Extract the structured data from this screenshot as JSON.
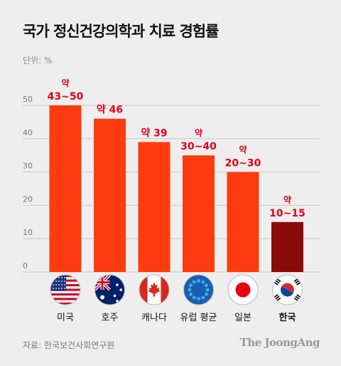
{
  "title": "국가 정신건강의학과 치료 경험률",
  "unit_label": "단위: %",
  "source": "자료: 한국보건사회연구원",
  "brand": "The JoongAng",
  "colors": {
    "bar": "#ff3b0f",
    "highlight": "#8b0a0a",
    "label": "#e0001a",
    "grid": "#c8c8c8"
  },
  "chart_data": {
    "type": "bar",
    "title": "국가 정신건강의학과 치료 경험률",
    "ylabel": "단위: %",
    "ylim": [
      0,
      50
    ],
    "yticks": [
      0,
      10,
      20,
      30,
      40,
      50
    ],
    "grid": true,
    "categories": [
      "미국",
      "호주",
      "캐나다",
      "유럽 평균",
      "일본",
      "한국"
    ],
    "values": [
      50,
      46,
      39,
      35,
      30,
      15
    ],
    "data_labels": [
      [
        "약",
        "43~50"
      ],
      [
        "약 46"
      ],
      [
        "약 39"
      ],
      [
        "약",
        "30~40"
      ],
      [
        "약",
        "20~30"
      ],
      [
        "약",
        "10~15"
      ]
    ],
    "flags": [
      "usa-flag-icon",
      "australia-flag-icon",
      "canada-flag-icon",
      "eu-flag-icon",
      "japan-flag-icon",
      "korea-flag-icon"
    ],
    "highlight_index": 5
  }
}
